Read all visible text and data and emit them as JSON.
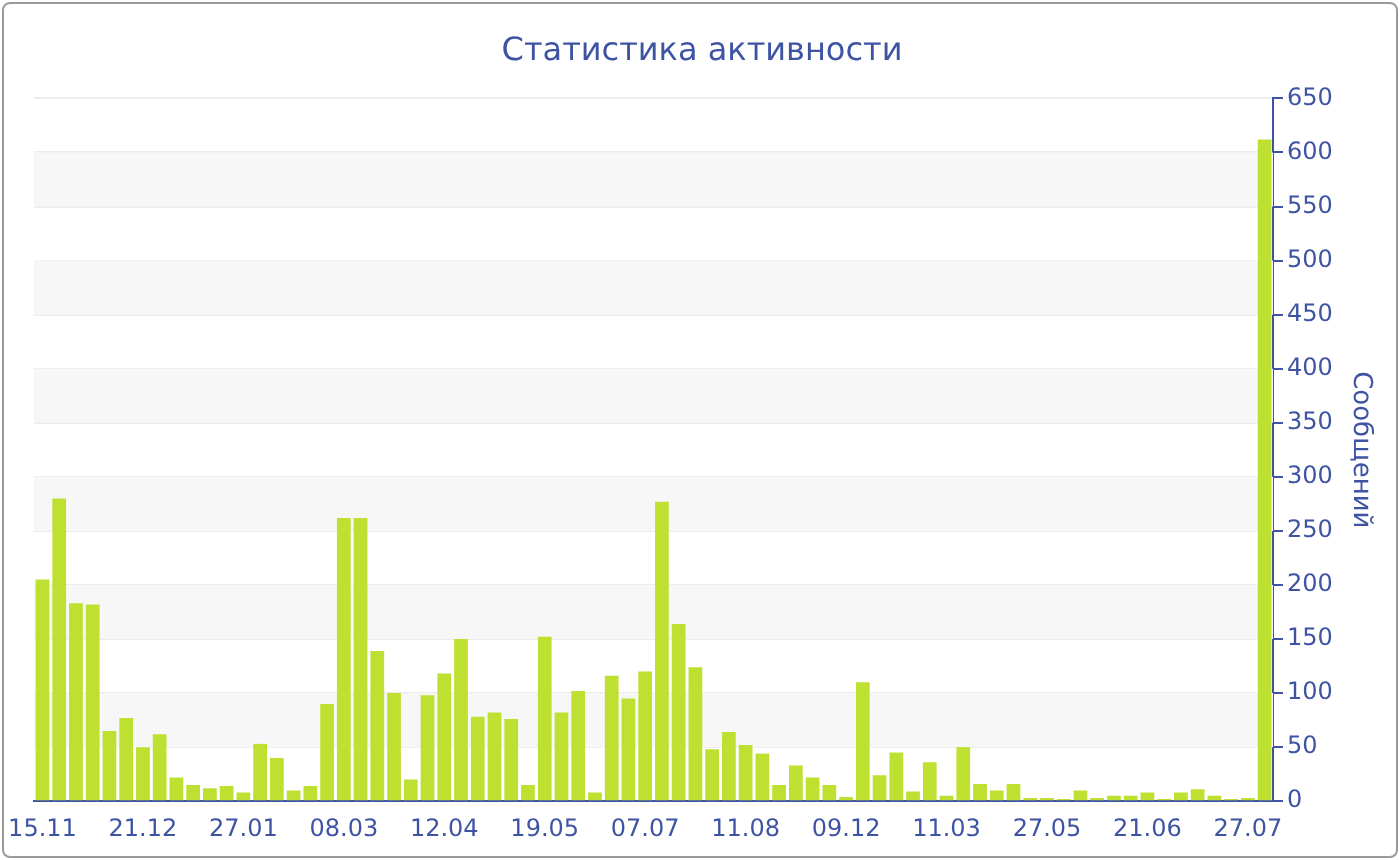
{
  "chart_data": {
    "type": "bar",
    "title": "Статистика активности",
    "ylabel": "Сообщений",
    "categories": [
      "15.11",
      null,
      null,
      null,
      null,
      null,
      "21.12",
      null,
      null,
      null,
      null,
      null,
      "27.01",
      null,
      null,
      null,
      null,
      null,
      "08.03",
      null,
      null,
      null,
      null,
      null,
      "12.04",
      null,
      null,
      null,
      null,
      null,
      "19.05",
      null,
      null,
      null,
      null,
      null,
      "07.07",
      null,
      null,
      null,
      null,
      null,
      "11.08",
      null,
      null,
      null,
      null,
      null,
      "09.12",
      null,
      null,
      null,
      null,
      null,
      "11.03",
      null,
      null,
      null,
      null,
      null,
      "27.05",
      null,
      null,
      null,
      null,
      null,
      "21.06",
      null,
      null,
      null,
      null,
      null,
      "27.07",
      null
    ],
    "values": [
      205,
      280,
      183,
      182,
      65,
      77,
      50,
      62,
      22,
      15,
      12,
      14,
      8,
      53,
      40,
      10,
      14,
      90,
      262,
      262,
      139,
      100,
      20,
      98,
      118,
      150,
      78,
      82,
      76,
      15,
      152,
      82,
      102,
      8,
      116,
      95,
      120,
      277,
      164,
      124,
      48,
      64,
      52,
      44,
      15,
      33,
      22,
      15,
      4,
      110,
      24,
      45,
      9,
      36,
      5,
      50,
      16,
      10,
      16,
      3,
      3,
      2,
      10,
      3,
      5,
      5,
      8,
      2,
      8,
      11,
      5,
      2,
      3,
      612
    ],
    "color": "#bde031",
    "ylim": [
      0,
      650
    ],
    "yticks": [
      0,
      50,
      100,
      150,
      200,
      250,
      300,
      350,
      400,
      450,
      500,
      550,
      600,
      650
    ],
    "grid": "y"
  }
}
